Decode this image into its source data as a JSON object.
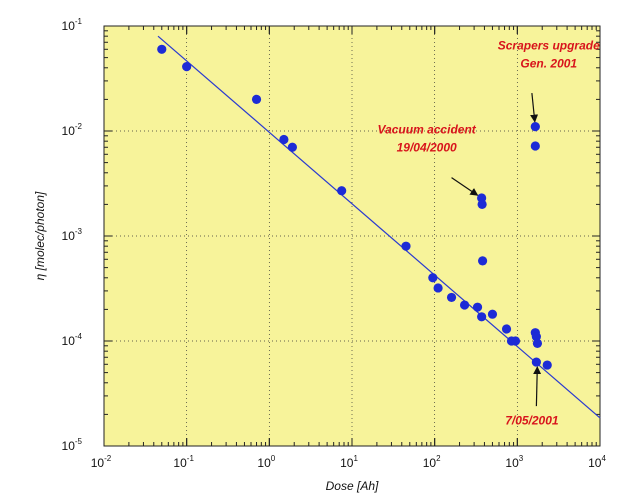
{
  "chart_data": {
    "type": "scatter",
    "xscale": "log",
    "yscale": "log",
    "xlim": [
      0.01,
      10000
    ],
    "ylim": [
      1e-05,
      0.1
    ],
    "xlabel": "Dose [Ah]",
    "ylabel": "η [molec/photon]",
    "grid": true,
    "background_color": "#f7f39a",
    "point_color": "#1d2bd6",
    "fit_color": "#2a3ad0",
    "annotation_color": "#d8141c",
    "x_ticks": [
      {
        "base": "10",
        "exp": "-2",
        "value": 0.01
      },
      {
        "base": "10",
        "exp": "-1",
        "value": 0.1
      },
      {
        "base": "10",
        "exp": "0",
        "value": 1
      },
      {
        "base": "10",
        "exp": "1",
        "value": 10
      },
      {
        "base": "10",
        "exp": "2",
        "value": 100
      },
      {
        "base": "10",
        "exp": "3",
        "value": 1000
      },
      {
        "base": "10",
        "exp": "4",
        "value": 10000
      }
    ],
    "y_ticks": [
      {
        "base": "10",
        "exp": "-5",
        "value": 1e-05
      },
      {
        "base": "10",
        "exp": "-4",
        "value": 0.0001
      },
      {
        "base": "10",
        "exp": "-3",
        "value": 0.001
      },
      {
        "base": "10",
        "exp": "-2",
        "value": 0.01
      },
      {
        "base": "10",
        "exp": "-1",
        "value": 0.1
      }
    ],
    "points": [
      {
        "x": 0.05,
        "y": 0.06
      },
      {
        "x": 0.1,
        "y": 0.041
      },
      {
        "x": 0.7,
        "y": 0.02
      },
      {
        "x": 1.5,
        "y": 0.0083
      },
      {
        "x": 1.9,
        "y": 0.007
      },
      {
        "x": 7.5,
        "y": 0.0027
      },
      {
        "x": 45,
        "y": 0.0008
      },
      {
        "x": 95,
        "y": 0.0004
      },
      {
        "x": 110,
        "y": 0.00032
      },
      {
        "x": 160,
        "y": 0.00026
      },
      {
        "x": 230,
        "y": 0.00022
      },
      {
        "x": 330,
        "y": 0.00021
      },
      {
        "x": 370,
        "y": 0.00017
      },
      {
        "x": 370,
        "y": 0.0023
      },
      {
        "x": 375,
        "y": 0.002
      },
      {
        "x": 380,
        "y": 0.00058
      },
      {
        "x": 500,
        "y": 0.00018
      },
      {
        "x": 740,
        "y": 0.00013
      },
      {
        "x": 850,
        "y": 0.0001
      },
      {
        "x": 950,
        "y": 0.0001
      },
      {
        "x": 1650,
        "y": 0.011
      },
      {
        "x": 1650,
        "y": 0.0072
      },
      {
        "x": 1650,
        "y": 0.00012
      },
      {
        "x": 1700,
        "y": 0.00011
      },
      {
        "x": 1750,
        "y": 9.5e-05
      },
      {
        "x": 1700,
        "y": 6.3e-05
      },
      {
        "x": 2300,
        "y": 5.9e-05
      }
    ],
    "fit_line": {
      "x1": 0.045,
      "y1": 0.08,
      "x2": 10000,
      "y2": 1.85e-05
    },
    "annotations": [
      {
        "lines": [
          "Scrapers upgrade",
          "Gen. 2001"
        ],
        "target": {
          "x": 1650,
          "y": 0.011
        },
        "text_at": {
          "x": 2400,
          "y": 0.06
        },
        "arrow_from": {
          "x": 1500,
          "y": 0.023
        }
      },
      {
        "lines": [
          "Vacuum accident",
          "19/04/2000"
        ],
        "target": {
          "x": 370,
          "y": 0.0023
        },
        "text_at": {
          "x": 80,
          "y": 0.0095
        },
        "arrow_from": {
          "x": 160,
          "y": 0.0036
        }
      },
      {
        "lines": [
          "7/05/2001"
        ],
        "target": {
          "x": 1750,
          "y": 6.3e-05
        },
        "text_at": {
          "x": 1500,
          "y": 1.6e-05
        },
        "arrow_from": {
          "x": 1700,
          "y": 2.4e-05
        }
      }
    ]
  }
}
